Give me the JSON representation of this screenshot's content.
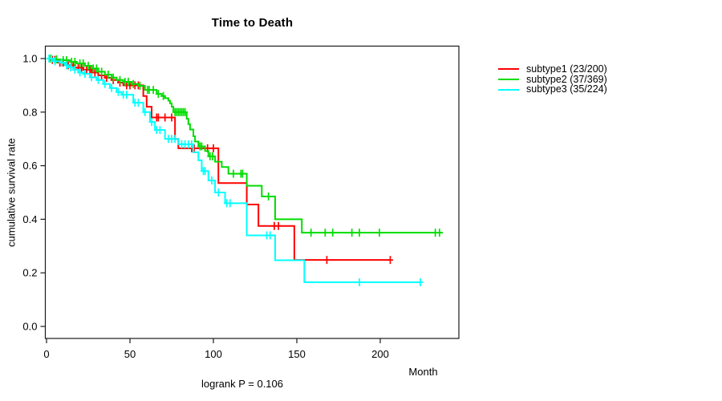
{
  "title": "Time to Death",
  "footnote": "logrank P = 0.106",
  "axes": {
    "x_label": "Month",
    "y_label": "cumulative survival rate",
    "x_tick_labels": [
      "0",
      "50",
      "100",
      "150",
      "200"
    ],
    "y_tick_labels": [
      "0.0",
      "0.2",
      "0.4",
      "0.6",
      "0.8",
      "1.0"
    ]
  },
  "legend": {
    "items": [
      {
        "label": "subtype1 (23/200)",
        "color": "#ff0000"
      },
      {
        "label": "subtype2 (37/369)",
        "color": "#00dd00"
      },
      {
        "label": "subtype3 (35/224)",
        "color": "#00ffff"
      }
    ]
  },
  "chart_data": {
    "type": "line",
    "subtype": "kaplan-meier-step",
    "title": "Time to Death",
    "xlabel": "Month",
    "ylabel": "cumulative survival rate",
    "xlim": [
      0,
      247
    ],
    "ylim": [
      0,
      1.0
    ],
    "x_ticks": [
      0,
      50,
      100,
      150,
      200
    ],
    "y_ticks": [
      0.0,
      0.2,
      0.4,
      0.6,
      0.8,
      1.0
    ],
    "grid": false,
    "legend_position": "top-right-outside",
    "annotation": "logrank P = 0.106",
    "series": [
      {
        "name": "subtype1 (23/200)",
        "color": "#ff0000",
        "steps": [
          [
            0,
            1.0
          ],
          [
            3,
            0.995
          ],
          [
            7,
            0.985
          ],
          [
            12,
            0.975
          ],
          [
            17,
            0.966
          ],
          [
            22,
            0.958
          ],
          [
            27,
            0.948
          ],
          [
            31,
            0.937
          ],
          [
            35,
            0.928
          ],
          [
            39,
            0.92
          ],
          [
            43,
            0.91
          ],
          [
            46,
            0.9
          ],
          [
            58,
            0.86
          ],
          [
            60,
            0.82
          ],
          [
            63,
            0.78
          ],
          [
            77,
            0.7
          ],
          [
            79,
            0.665
          ],
          [
            103,
            0.535
          ],
          [
            120,
            0.455
          ],
          [
            127,
            0.375
          ],
          [
            148.5,
            0.248
          ]
        ],
        "end_month": 206,
        "censor_months": [
          3.5,
          5,
          8,
          10,
          13,
          16,
          19,
          21,
          24,
          26,
          29,
          33,
          36,
          40,
          44,
          48,
          50,
          53,
          55,
          66,
          67,
          71,
          75,
          87,
          88.5,
          96.5,
          100,
          136.5,
          139,
          168,
          206
        ]
      },
      {
        "name": "subtype2 (37/369)",
        "color": "#00dd00",
        "steps": [
          [
            0,
            1.0
          ],
          [
            5,
            0.997
          ],
          [
            9,
            0.994
          ],
          [
            14,
            0.988
          ],
          [
            18,
            0.982
          ],
          [
            23,
            0.973
          ],
          [
            27,
            0.963
          ],
          [
            31,
            0.951
          ],
          [
            35,
            0.94
          ],
          [
            39,
            0.929
          ],
          [
            42,
            0.92
          ],
          [
            46,
            0.913
          ],
          [
            51,
            0.905
          ],
          [
            55,
            0.898
          ],
          [
            59,
            0.883
          ],
          [
            66,
            0.868
          ],
          [
            69,
            0.86
          ],
          [
            71,
            0.852
          ],
          [
            73,
            0.843
          ],
          [
            74,
            0.833
          ],
          [
            75,
            0.82
          ],
          [
            76,
            0.8
          ],
          [
            84,
            0.775
          ],
          [
            85,
            0.755
          ],
          [
            86,
            0.735
          ],
          [
            88,
            0.71
          ],
          [
            89,
            0.69
          ],
          [
            91,
            0.672
          ],
          [
            95,
            0.655
          ],
          [
            97,
            0.635
          ],
          [
            101,
            0.615
          ],
          [
            105,
            0.595
          ],
          [
            109,
            0.57
          ],
          [
            120,
            0.525
          ],
          [
            129,
            0.485
          ],
          [
            137,
            0.4
          ],
          [
            153,
            0.35
          ]
        ],
        "end_month": 237.5,
        "censor_months": [
          2,
          6,
          10,
          12,
          15,
          17,
          20,
          22,
          25,
          28,
          30,
          33,
          37,
          40,
          44,
          47,
          49,
          52,
          56,
          60.5,
          61.5,
          64,
          67,
          70,
          77,
          78,
          79,
          80,
          81,
          82,
          83,
          92,
          93,
          98,
          99.5,
          112,
          116.5,
          117.5,
          133,
          158.5,
          167,
          171.5,
          183,
          187.5,
          199.5,
          233,
          235.5
        ]
      },
      {
        "name": "subtype3 (35/224)",
        "color": "#00ffff",
        "steps": [
          [
            0,
            1.0
          ],
          [
            4,
            0.99
          ],
          [
            8,
            0.985
          ],
          [
            11,
            0.975
          ],
          [
            13,
            0.967
          ],
          [
            16,
            0.958
          ],
          [
            19,
            0.948
          ],
          [
            22,
            0.943
          ],
          [
            26,
            0.93
          ],
          [
            30,
            0.92
          ],
          [
            34,
            0.905
          ],
          [
            38,
            0.89
          ],
          [
            42,
            0.875
          ],
          [
            45,
            0.865
          ],
          [
            52,
            0.835
          ],
          [
            58,
            0.8
          ],
          [
            62,
            0.763
          ],
          [
            65,
            0.733
          ],
          [
            71,
            0.7
          ],
          [
            79,
            0.68
          ],
          [
            88,
            0.65
          ],
          [
            91,
            0.62
          ],
          [
            93,
            0.58
          ],
          [
            97,
            0.545
          ],
          [
            101,
            0.5
          ],
          [
            107,
            0.46
          ],
          [
            120,
            0.34
          ],
          [
            137,
            0.247
          ],
          [
            154.5,
            0.165
          ]
        ],
        "end_month": 224,
        "censor_months": [
          1.5,
          3,
          5,
          9,
          12,
          14.5,
          17,
          20,
          23,
          27,
          31,
          35,
          39,
          43,
          46,
          48,
          53,
          55,
          59,
          63,
          66,
          68,
          73,
          75,
          77,
          81,
          83,
          85,
          87,
          94,
          95,
          99,
          103,
          108,
          110,
          132,
          134,
          187.5,
          224
        ]
      }
    ]
  }
}
